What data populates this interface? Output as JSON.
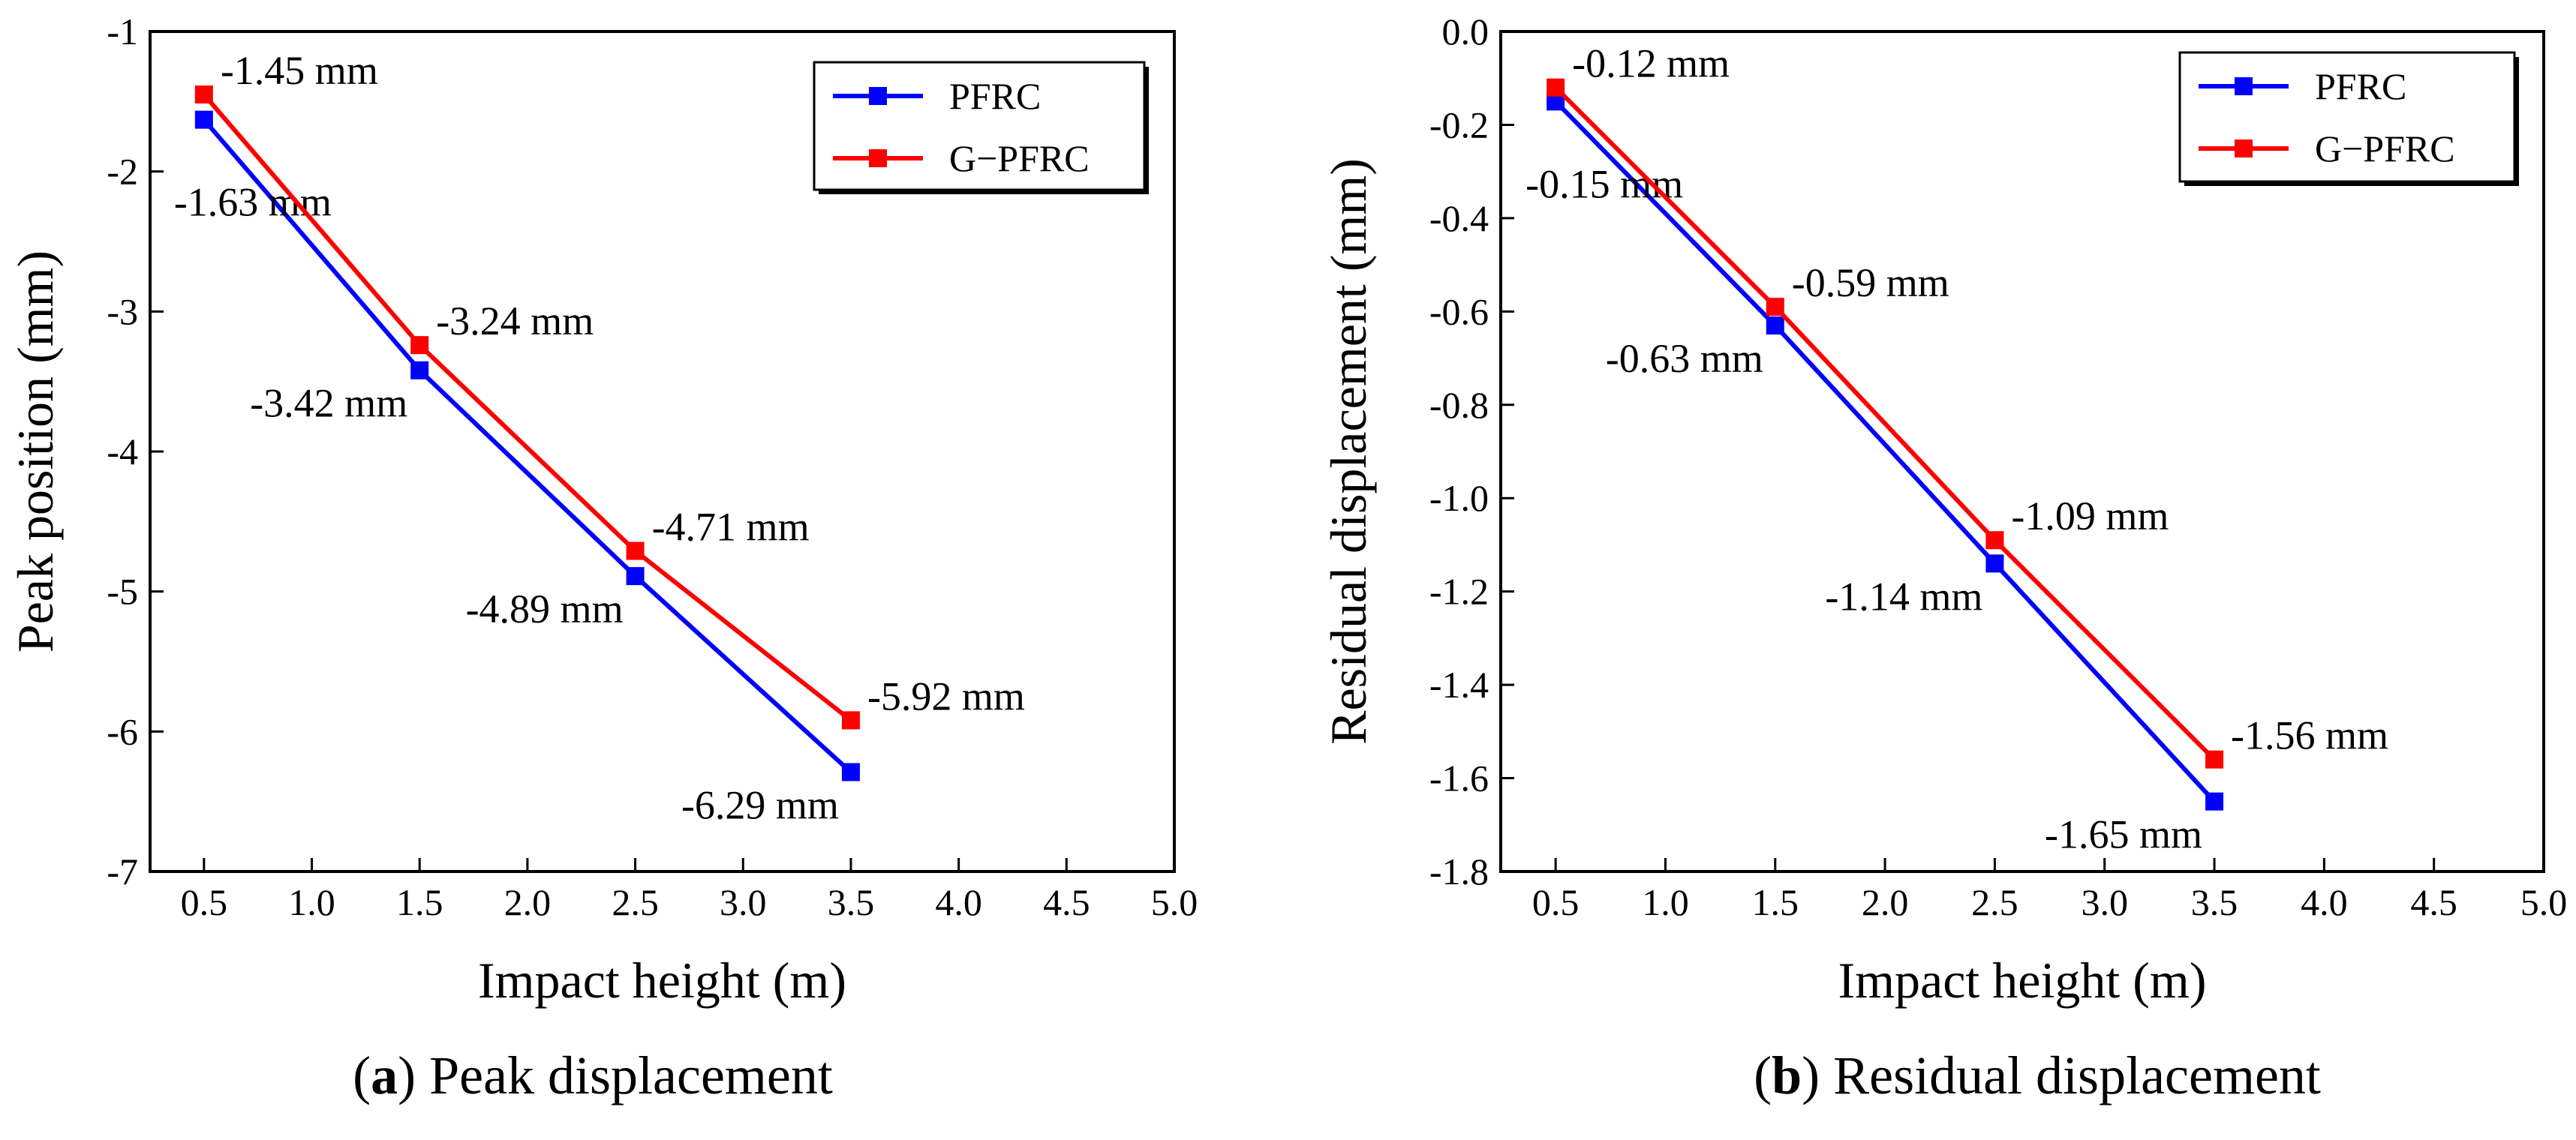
{
  "chart_data": [
    {
      "type": "line",
      "panel_id": "a",
      "caption_id": "a",
      "caption_text": "Peak displacement",
      "xlabel": "Impact height (m)",
      "ylabel": "Peak position (mm)",
      "xlim": [
        0.25,
        5.0
      ],
      "ylim": [
        -7,
        -1
      ],
      "xticks": [
        0.5,
        1.0,
        1.5,
        2.0,
        2.5,
        3.0,
        3.5,
        4.0,
        4.5,
        5.0
      ],
      "xtick_labels": [
        "0.5",
        "1.0",
        "1.5",
        "2.0",
        "2.5",
        "3.0",
        "3.5",
        "4.0",
        "4.5",
        "5.0"
      ],
      "yticks": [
        -1,
        -2,
        -3,
        -4,
        -5,
        -6,
        -7
      ],
      "ytick_labels": [
        "-1",
        "-2",
        "-3",
        "-4",
        "-5",
        "-6",
        "-7"
      ],
      "legend_position": "top-right",
      "x": [
        0.5,
        1.5,
        2.5,
        3.5
      ],
      "series": [
        {
          "name": "PFRC",
          "color": "#0000ff",
          "values": [
            -1.63,
            -3.42,
            -4.89,
            -6.29
          ],
          "labels": [
            "-1.63 mm",
            "-3.42 mm",
            "-4.89 mm",
            "-6.29 mm"
          ],
          "label_side": "below-left"
        },
        {
          "name": "G−PFRC",
          "color": "#ff0000",
          "values": [
            -1.45,
            -3.24,
            -4.71,
            -5.92
          ],
          "labels": [
            "-1.45 mm",
            "-3.24 mm",
            "-4.71 mm",
            "-5.92 mm"
          ],
          "label_side": "above-right"
        }
      ]
    },
    {
      "type": "line",
      "panel_id": "b",
      "caption_id": "b",
      "caption_text": "Residual displacement",
      "xlabel": "Impact height (m)",
      "ylabel": "Residual displacement (mm)",
      "xlim": [
        0.25,
        5.0
      ],
      "ylim": [
        -1.8,
        0.0
      ],
      "xticks": [
        0.5,
        1.0,
        1.5,
        2.0,
        2.5,
        3.0,
        3.5,
        4.0,
        4.5,
        5.0
      ],
      "xtick_labels": [
        "0.5",
        "1.0",
        "1.5",
        "2.0",
        "2.5",
        "3.0",
        "3.5",
        "4.0",
        "4.5",
        "5.0"
      ],
      "yticks": [
        0.0,
        -0.2,
        -0.4,
        -0.6,
        -0.8,
        -1.0,
        -1.2,
        -1.4,
        -1.6,
        -1.8
      ],
      "ytick_labels": [
        "0.0",
        "-0.2",
        "-0.4",
        "-0.6",
        "-0.8",
        "-1.0",
        "-1.2",
        "-1.4",
        "-1.6",
        "-1.8"
      ],
      "legend_position": "top-right",
      "x": [
        0.5,
        1.5,
        2.5,
        3.5
      ],
      "series": [
        {
          "name": "PFRC",
          "color": "#0000ff",
          "values": [
            -0.15,
            -0.63,
            -1.14,
            -1.65
          ],
          "labels": [
            "-0.15 mm",
            "-0.63 mm",
            "-1.14 mm",
            "-1.65 mm"
          ],
          "label_side": "below-left"
        },
        {
          "name": "G−PFRC",
          "color": "#ff0000",
          "values": [
            -0.12,
            -0.59,
            -1.09,
            -1.56
          ],
          "labels": [
            "-0.12 mm",
            "-0.59 mm",
            "-1.09 mm",
            "-1.56 mm"
          ],
          "label_side": "above-right"
        }
      ]
    }
  ]
}
